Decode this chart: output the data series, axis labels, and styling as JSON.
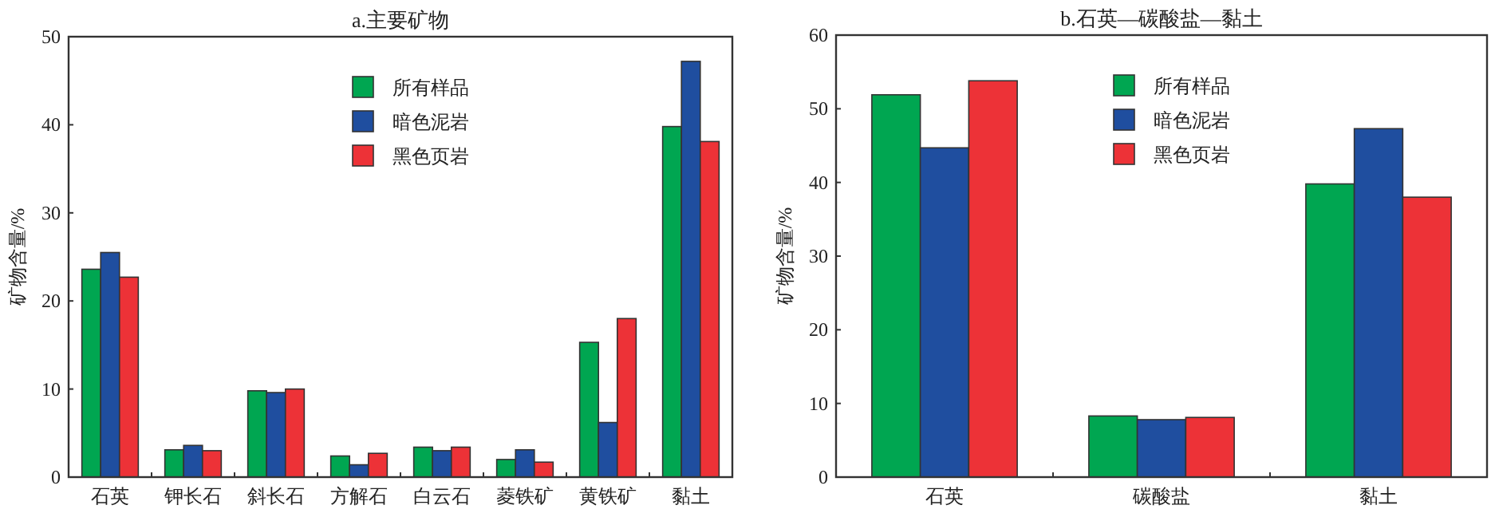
{
  "chart_data": [
    {
      "type": "bar",
      "title": "a.主要矿物",
      "ylabel": "矿物含量/%",
      "categories": [
        "石英",
        "钾长石",
        "斜长石",
        "方解石",
        "白云石",
        "菱铁矿",
        "黄铁矿",
        "黏土"
      ],
      "ylim": [
        0,
        50
      ],
      "yticks": [
        0,
        10,
        20,
        30,
        40,
        50
      ],
      "grid": false,
      "legend": "top",
      "series": [
        {
          "name": "所有样品",
          "color": "#00a651",
          "values": [
            23.6,
            3.1,
            9.8,
            2.4,
            3.4,
            2.0,
            15.3,
            39.8
          ]
        },
        {
          "name": "暗色泥岩",
          "color": "#1f4e9f",
          "values": [
            25.5,
            3.6,
            9.6,
            1.4,
            3.0,
            3.1,
            6.2,
            47.2
          ]
        },
        {
          "name": "黑色页岩",
          "color": "#ed3237",
          "values": [
            22.7,
            3.0,
            10.0,
            2.7,
            3.4,
            1.7,
            18.0,
            38.1
          ]
        }
      ]
    },
    {
      "type": "bar",
      "title": "b.石英—碳酸盐—黏土",
      "ylabel": "矿物含量/%",
      "categories": [
        "石英",
        "碳酸盐",
        "黏土"
      ],
      "ylim": [
        0,
        60
      ],
      "yticks": [
        0,
        10,
        20,
        30,
        40,
        50,
        60
      ],
      "grid": false,
      "legend": "top",
      "series": [
        {
          "name": "所有样品",
          "color": "#00a651",
          "values": [
            51.9,
            8.3,
            39.8
          ]
        },
        {
          "name": "暗色泥岩",
          "color": "#1f4e9f",
          "values": [
            44.7,
            7.8,
            47.3
          ]
        },
        {
          "name": "黑色页岩",
          "color": "#ed3237",
          "values": [
            53.8,
            8.1,
            38.0
          ]
        }
      ]
    }
  ]
}
